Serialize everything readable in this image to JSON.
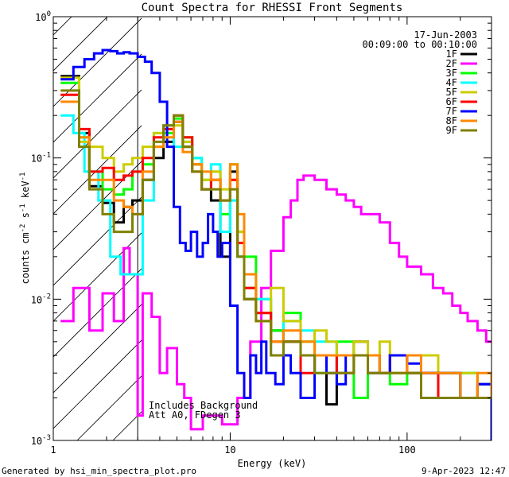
{
  "chart_data": {
    "type": "line",
    "title": "Count Spectra for RHESSI Front Segments",
    "xlabel": "Energy (keV)",
    "ylabel": "counts cm^-2 s^-1 keV^-1",
    "xscale": "log",
    "yscale": "log",
    "xlim": [
      1.0,
      300.0
    ],
    "ylim": [
      0.001,
      1.0
    ],
    "x_ticks": [
      "1",
      "10",
      "100"
    ],
    "y_ticks": [
      "10^-3",
      "10^-2",
      "10^-1",
      "10^0"
    ],
    "legend_position": "top-right",
    "date_label": "17-Jun-2003",
    "time_range": "00:09:00 to 00:10:00",
    "annotations": [
      "Includes Background",
      "Att A0, FDegen 3"
    ],
    "hatched_region_x": [
      1.0,
      3.0
    ],
    "series": [
      {
        "name": "1F",
        "color": "#000000",
        "x": [
          1.1,
          1.4,
          1.6,
          1.9,
          2.2,
          2.5,
          2.8,
          3.2,
          3.7,
          4.2,
          4.8,
          5.4,
          6.1,
          6.9,
          7.8,
          8.8,
          10,
          11,
          12,
          14,
          17,
          20,
          25,
          30,
          35,
          40,
          50,
          60,
          70,
          80,
          100,
          120,
          150,
          200,
          250,
          300
        ],
        "y": [
          0.38,
          0.15,
          0.063,
          0.048,
          0.035,
          0.045,
          0.05,
          0.07,
          0.1,
          0.13,
          0.18,
          0.12,
          0.09,
          0.06,
          0.05,
          0.02,
          0.08,
          0.02,
          0.01,
          0.008,
          0.006,
          0.005,
          0.004,
          0.004,
          0.0018,
          0.004,
          0.005,
          0.004,
          0.003,
          0.004,
          0.003,
          0.003,
          0.003,
          0.002,
          0.0025,
          0.0015
        ]
      },
      {
        "name": "2F",
        "color": "#ff00ff",
        "x": [
          1.1,
          1.3,
          1.6,
          1.9,
          2.2,
          2.5,
          2.7,
          3.0,
          3.2,
          3.6,
          4.0,
          4.4,
          5.0,
          5.5,
          6.0,
          7.0,
          8.0,
          9.0,
          10,
          11,
          13,
          15,
          17,
          20,
          22,
          24,
          26,
          28,
          30,
          35,
          40,
          45,
          50,
          55,
          60,
          70,
          80,
          90,
          100,
          120,
          140,
          160,
          180,
          200,
          220,
          250,
          280,
          300
        ],
        "y": [
          0.007,
          0.012,
          0.006,
          0.011,
          0.007,
          0.023,
          0.015,
          0.0015,
          0.011,
          0.0075,
          0.003,
          0.0045,
          0.0025,
          0.002,
          0.0012,
          0.0015,
          0.0015,
          0.0013,
          0.0013,
          0.002,
          0.005,
          0.012,
          0.022,
          0.038,
          0.05,
          0.07,
          0.075,
          0.075,
          0.07,
          0.06,
          0.055,
          0.05,
          0.045,
          0.04,
          0.04,
          0.035,
          0.025,
          0.02,
          0.017,
          0.015,
          0.012,
          0.011,
          0.009,
          0.008,
          0.007,
          0.006,
          0.005,
          0.005
        ]
      },
      {
        "name": "3F",
        "color": "#00ff00",
        "x": [
          1.1,
          1.4,
          1.6,
          1.9,
          2.2,
          2.5,
          2.8,
          3.2,
          3.7,
          4.2,
          4.8,
          5.4,
          6.1,
          6.9,
          7.8,
          8.8,
          10,
          11,
          12,
          14,
          17,
          20,
          25,
          30,
          35,
          40,
          50,
          60,
          70,
          80,
          100,
          120,
          150,
          200,
          250,
          300
        ],
        "y": [
          0.34,
          0.14,
          0.08,
          0.06,
          0.055,
          0.06,
          0.08,
          0.09,
          0.12,
          0.15,
          0.19,
          0.14,
          0.1,
          0.07,
          0.08,
          0.04,
          0.09,
          0.03,
          0.02,
          0.01,
          0.006,
          0.008,
          0.005,
          0.003,
          0.004,
          0.005,
          0.002,
          0.004,
          0.003,
          0.0025,
          0.003,
          0.002,
          0.003,
          0.003,
          0.002,
          0.002
        ]
      },
      {
        "name": "4F",
        "color": "#00ffff",
        "x": [
          1.1,
          1.3,
          1.5,
          1.8,
          2.1,
          2.4,
          2.8,
          3.2,
          3.7,
          4.2,
          4.8,
          5.4,
          6.1,
          6.9,
          7.8,
          8.8,
          10,
          11,
          12,
          14,
          17,
          20,
          25,
          30,
          35,
          40,
          50,
          60,
          70,
          80,
          100,
          120,
          150,
          200,
          250,
          300
        ],
        "y": [
          0.2,
          0.15,
          0.08,
          0.05,
          0.02,
          0.015,
          0.015,
          0.05,
          0.15,
          0.17,
          0.12,
          0.13,
          0.1,
          0.06,
          0.09,
          0.03,
          0.05,
          0.02,
          0.012,
          0.01,
          0.004,
          0.007,
          0.006,
          0.005,
          0.005,
          0.003,
          0.004,
          0.004,
          0.003,
          0.003,
          0.003,
          0.003,
          0.002,
          0.003,
          0.002,
          0.002
        ]
      },
      {
        "name": "5F",
        "color": "#cccc00",
        "x": [
          1.1,
          1.4,
          1.6,
          1.9,
          2.2,
          2.5,
          2.8,
          3.2,
          3.7,
          4.2,
          4.8,
          5.4,
          6.1,
          6.9,
          7.8,
          8.8,
          10,
          11,
          12,
          14,
          17,
          20,
          25,
          30,
          35,
          40,
          50,
          60,
          70,
          80,
          100,
          120,
          150,
          200,
          250,
          300
        ],
        "y": [
          0.37,
          0.13,
          0.12,
          0.1,
          0.08,
          0.09,
          0.1,
          0.12,
          0.15,
          0.16,
          0.17,
          0.13,
          0.09,
          0.07,
          0.08,
          0.06,
          0.07,
          0.03,
          0.012,
          0.008,
          0.012,
          0.007,
          0.004,
          0.006,
          0.005,
          0.004,
          0.005,
          0.004,
          0.005,
          0.003,
          0.004,
          0.004,
          0.003,
          0.003,
          0.002,
          0.002
        ]
      },
      {
        "name": "6F",
        "color": "#ff0000",
        "x": [
          1.1,
          1.4,
          1.6,
          1.9,
          2.2,
          2.5,
          2.8,
          3.2,
          3.7,
          4.2,
          4.8,
          5.4,
          6.1,
          6.9,
          7.8,
          8.8,
          10,
          11,
          12,
          14,
          17,
          20,
          25,
          30,
          35,
          40,
          50,
          60,
          70,
          80,
          100,
          120,
          150,
          200,
          250,
          300
        ],
        "y": [
          0.28,
          0.16,
          0.08,
          0.085,
          0.07,
          0.075,
          0.08,
          0.1,
          0.14,
          0.16,
          0.2,
          0.14,
          0.08,
          0.06,
          0.07,
          0.05,
          0.07,
          0.025,
          0.012,
          0.008,
          0.005,
          0.005,
          0.003,
          0.004,
          0.004,
          0.003,
          0.004,
          0.004,
          0.003,
          0.004,
          0.003,
          0.003,
          0.002,
          0.002,
          0.002,
          0.002
        ]
      },
      {
        "name": "7F",
        "color": "#0000ff",
        "x": [
          1.1,
          1.3,
          1.5,
          1.7,
          1.9,
          2.1,
          2.3,
          2.5,
          2.7,
          3.0,
          3.3,
          3.6,
          4.0,
          4.4,
          4.8,
          5.2,
          5.6,
          6.0,
          6.5,
          7.0,
          7.5,
          8.0,
          8.5,
          9.0,
          10,
          11,
          12,
          13,
          14,
          15,
          16,
          17,
          18,
          20,
          22,
          25,
          30,
          35,
          40,
          45,
          50,
          60,
          70,
          80,
          100,
          120,
          150,
          200,
          250,
          300
        ],
        "y": [
          0.36,
          0.44,
          0.5,
          0.55,
          0.58,
          0.57,
          0.55,
          0.56,
          0.55,
          0.52,
          0.48,
          0.4,
          0.25,
          0.12,
          0.045,
          0.025,
          0.022,
          0.03,
          0.02,
          0.025,
          0.04,
          0.03,
          0.02,
          0.025,
          0.009,
          0.003,
          0.002,
          0.004,
          0.003,
          0.005,
          0.003,
          0.003,
          0.0025,
          0.004,
          0.003,
          0.002,
          0.004,
          0.003,
          0.0025,
          0.004,
          0.004,
          0.003,
          0.003,
          0.004,
          0.0035,
          0.003,
          0.003,
          0.002,
          0.0025,
          0.001
        ]
      },
      {
        "name": "8F",
        "color": "#ff8800",
        "x": [
          1.1,
          1.4,
          1.6,
          1.9,
          2.2,
          2.5,
          2.8,
          3.2,
          3.7,
          4.2,
          4.8,
          5.4,
          6.1,
          6.9,
          7.8,
          8.8,
          10,
          11,
          12,
          14,
          17,
          20,
          25,
          30,
          35,
          40,
          50,
          60,
          70,
          80,
          100,
          120,
          150,
          200,
          250,
          300
        ],
        "y": [
          0.25,
          0.14,
          0.07,
          0.07,
          0.05,
          0.045,
          0.04,
          0.08,
          0.12,
          0.14,
          0.18,
          0.11,
          0.09,
          0.08,
          0.07,
          0.05,
          0.09,
          0.04,
          0.015,
          0.007,
          0.005,
          0.006,
          0.005,
          0.004,
          0.004,
          0.004,
          0.004,
          0.004,
          0.003,
          0.003,
          0.004,
          0.003,
          0.003,
          0.002,
          0.003,
          0.002
        ]
      },
      {
        "name": "9F",
        "color": "#808000",
        "x": [
          1.1,
          1.4,
          1.6,
          1.9,
          2.2,
          2.5,
          2.8,
          3.2,
          3.7,
          4.2,
          4.8,
          5.4,
          6.1,
          6.9,
          7.8,
          8.8,
          10,
          11,
          12,
          14,
          17,
          20,
          25,
          30,
          35,
          40,
          50,
          60,
          70,
          80,
          100,
          120,
          150,
          200,
          250,
          300
        ],
        "y": [
          0.3,
          0.12,
          0.06,
          0.04,
          0.03,
          0.03,
          0.04,
          0.07,
          0.13,
          0.17,
          0.2,
          0.12,
          0.08,
          0.06,
          0.06,
          0.05,
          0.06,
          0.02,
          0.01,
          0.007,
          0.004,
          0.005,
          0.004,
          0.003,
          0.003,
          0.003,
          0.004,
          0.003,
          0.003,
          0.003,
          0.003,
          0.002,
          0.002,
          0.002,
          0.002,
          0.002
        ]
      }
    ]
  },
  "footer": {
    "generated_by": "Generated by hsi_min_spectra_plot.pro",
    "timestamp": "9-Apr-2023 12:47"
  }
}
